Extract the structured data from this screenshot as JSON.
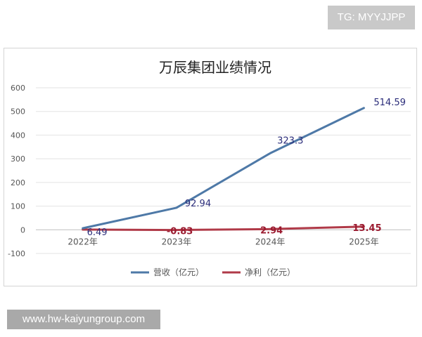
{
  "watermark_top": "TG: MYYJJPP",
  "watermark_bottom": "www.hw-kaiyungroup.com",
  "chart_data": {
    "type": "line",
    "title": "万辰集团业绩情况",
    "categories": [
      "2022年",
      "2023年",
      "2024年",
      "2025年"
    ],
    "ylim": [
      -100,
      600
    ],
    "yticks": [
      -100,
      0,
      100,
      200,
      300,
      400,
      500,
      600
    ],
    "grid": true,
    "legend_position": "bottom",
    "series": [
      {
        "name": "营收（亿元）",
        "values": [
          6.49,
          92.94,
          323.3,
          514.59
        ],
        "labels": [
          "6.49",
          "92.94",
          "323.3",
          "514.59"
        ],
        "color": "#4e79a7",
        "label_color": "#2b2d7a"
      },
      {
        "name": "净利（亿元）",
        "values": [
          0.8,
          -0.83,
          2.94,
          13.45
        ],
        "labels": [
          "",
          "-0.83",
          "2.94",
          "13.45"
        ],
        "color": "#b03a48",
        "label_color": "#9b1b30"
      }
    ]
  }
}
